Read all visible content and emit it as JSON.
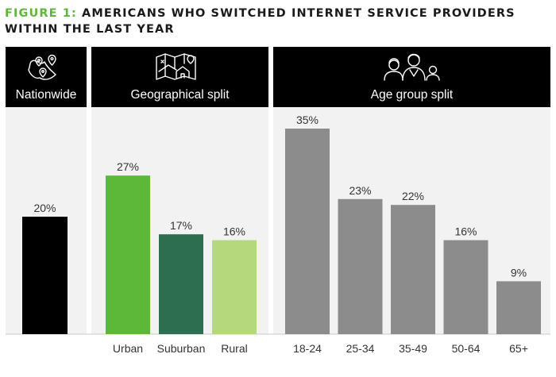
{
  "title": {
    "prefix": "FIGURE 1:",
    "line1": "AMERICANS WHO SWITCHED INTERNET SERVICE PROVIDERS",
    "line2": "WITHIN THE LAST YEAR"
  },
  "colors": {
    "nationwide": "#000000",
    "urban": "#5db83a",
    "suburban": "#2e6e50",
    "rural": "#b5d87a",
    "age": "#8c8c8c",
    "panel_bg": "#f2f2f2",
    "header_bg": "#000000"
  },
  "chart_data": [
    {
      "type": "bar",
      "header": "Nationwide",
      "header_icon": "location-pins-icon",
      "categories": [
        ""
      ],
      "values": [
        20
      ],
      "value_labels": [
        "20%"
      ],
      "ylim": [
        0,
        40
      ]
    },
    {
      "type": "bar",
      "header": "Geographical split",
      "header_icon": "map-house-icon",
      "categories": [
        "Urban",
        "Suburban",
        "Rural"
      ],
      "values": [
        27,
        17,
        16
      ],
      "value_labels": [
        "27%",
        "17%",
        "16%"
      ],
      "ylim": [
        0,
        40
      ]
    },
    {
      "type": "bar",
      "header": "Age group split",
      "header_icon": "family-group-icon",
      "categories": [
        "18-24",
        "25-34",
        "35-49",
        "50-64",
        "65+"
      ],
      "values": [
        35,
        23,
        22,
        16,
        9
      ],
      "value_labels": [
        "35%",
        "23%",
        "22%",
        "16%",
        "9%"
      ],
      "ylim": [
        0,
        40
      ]
    }
  ]
}
